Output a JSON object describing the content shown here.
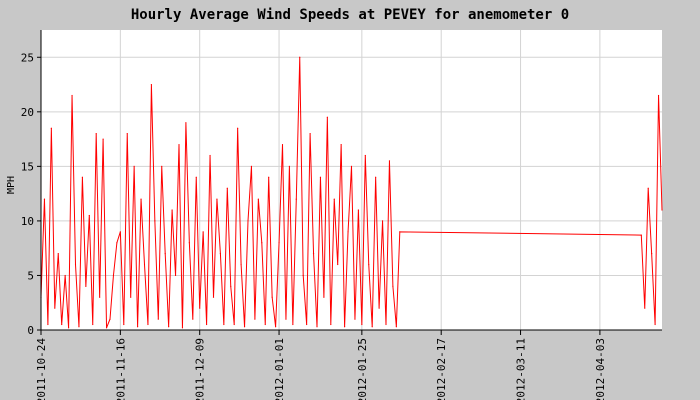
{
  "chart_data": {
    "type": "line",
    "title": "Hourly Average Wind Speeds at PEVEY for anemometer 0",
    "xlabel": "",
    "ylabel": "MPH",
    "x_ticks": [
      "2011-10-24",
      "2011-11-16",
      "2011-12-09",
      "2012-01-01",
      "2012-01-25",
      "2012-02-17",
      "2012-03-11",
      "2012-04-03"
    ],
    "y_ticks": [
      0,
      5,
      10,
      15,
      20,
      25
    ],
    "xlim": [
      "2011-10-24",
      "2012-04-21"
    ],
    "ylim": [
      0,
      27.5
    ],
    "grid": true,
    "legend": "none",
    "colors": {
      "series": "#ff0000",
      "background": "#c8c8c8",
      "plot_area": "#ffffff",
      "grid": "#d3d3d3"
    },
    "series": [
      {
        "x": [
          "2011-10-24",
          "2011-10-25",
          "2011-10-26",
          "2011-10-27",
          "2011-10-28",
          "2011-10-29",
          "2011-10-30",
          "2011-10-31",
          "2011-11-01",
          "2011-11-02",
          "2011-11-03",
          "2011-11-04",
          "2011-11-05",
          "2011-11-06",
          "2011-11-07",
          "2011-11-08",
          "2011-11-09",
          "2011-11-10",
          "2011-11-11",
          "2011-11-12",
          "2011-11-13",
          "2011-11-14",
          "2011-11-15",
          "2011-11-16",
          "2011-11-17",
          "2011-11-18",
          "2011-11-19",
          "2011-11-20",
          "2011-11-21",
          "2011-11-22",
          "2011-11-23",
          "2011-11-24",
          "2011-11-25",
          "2011-11-26",
          "2011-11-27",
          "2011-11-28",
          "2011-11-29",
          "2011-11-30",
          "2011-12-01",
          "2011-12-02",
          "2011-12-03",
          "2011-12-04",
          "2011-12-05",
          "2011-12-06",
          "2011-12-07",
          "2011-12-08",
          "2011-12-09",
          "2011-12-10",
          "2011-12-11",
          "2011-12-12",
          "2011-12-13",
          "2011-12-14",
          "2011-12-15",
          "2011-12-16",
          "2011-12-17",
          "2011-12-18",
          "2011-12-19",
          "2011-12-20",
          "2011-12-21",
          "2011-12-22",
          "2011-12-23",
          "2011-12-24",
          "2011-12-25",
          "2011-12-26",
          "2011-12-27",
          "2011-12-28",
          "2011-12-29",
          "2011-12-30",
          "2011-12-31",
          "2012-01-01",
          "2012-01-02",
          "2012-01-03",
          "2012-01-04",
          "2012-01-05",
          "2012-01-06",
          "2012-01-07",
          "2012-01-08",
          "2012-01-09",
          "2012-01-10",
          "2012-01-11",
          "2012-01-12",
          "2012-01-13",
          "2012-01-14",
          "2012-01-15",
          "2012-01-16",
          "2012-01-17",
          "2012-01-18",
          "2012-01-19",
          "2012-01-20",
          "2012-01-21",
          "2012-01-22",
          "2012-01-23",
          "2012-01-24",
          "2012-01-25",
          "2012-01-26",
          "2012-01-27",
          "2012-01-28",
          "2012-01-29",
          "2012-01-30",
          "2012-01-31",
          "2012-02-01",
          "2012-02-02",
          "2012-02-03",
          "2012-02-04",
          "2012-02-05",
          "2012-04-15",
          "2012-04-16",
          "2012-04-17",
          "2012-04-18",
          "2012-04-19",
          "2012-04-20",
          "2012-04-21"
        ],
        "values": [
          3.0,
          12.0,
          0.5,
          18.5,
          2.0,
          7.0,
          0.5,
          5.0,
          0.2,
          21.5,
          6.0,
          0.3,
          14.0,
          4.0,
          10.5,
          0.5,
          18.0,
          3.0,
          17.5,
          0.2,
          1.0,
          5.0,
          8.0,
          9.0,
          0.5,
          18.0,
          3.0,
          15.0,
          0.3,
          12.0,
          6.0,
          0.5,
          22.5,
          10.0,
          1.0,
          15.0,
          7.0,
          0.3,
          11.0,
          5.0,
          17.0,
          0.2,
          19.0,
          8.0,
          1.0,
          14.0,
          2.0,
          9.0,
          0.5,
          16.0,
          3.0,
          12.0,
          7.0,
          0.5,
          13.0,
          4.0,
          0.5,
          18.5,
          6.0,
          0.3,
          10.0,
          15.0,
          1.0,
          12.0,
          8.0,
          0.5,
          14.0,
          3.0,
          0.3,
          8.0,
          17.0,
          1.0,
          15.0,
          0.5,
          12.0,
          25.0,
          5.0,
          0.5,
          18.0,
          7.0,
          0.3,
          14.0,
          3.0,
          19.5,
          0.5,
          12.0,
          6.0,
          17.0,
          0.3,
          9.0,
          15.0,
          1.0,
          11.0,
          0.5,
          16.0,
          6.0,
          0.3,
          14.0,
          2.0,
          10.0,
          0.5,
          15.5,
          4.0,
          0.3,
          9.0,
          8.7,
          2.0,
          13.0,
          7.0,
          0.5,
          21.5,
          11.0
        ]
      }
    ]
  }
}
